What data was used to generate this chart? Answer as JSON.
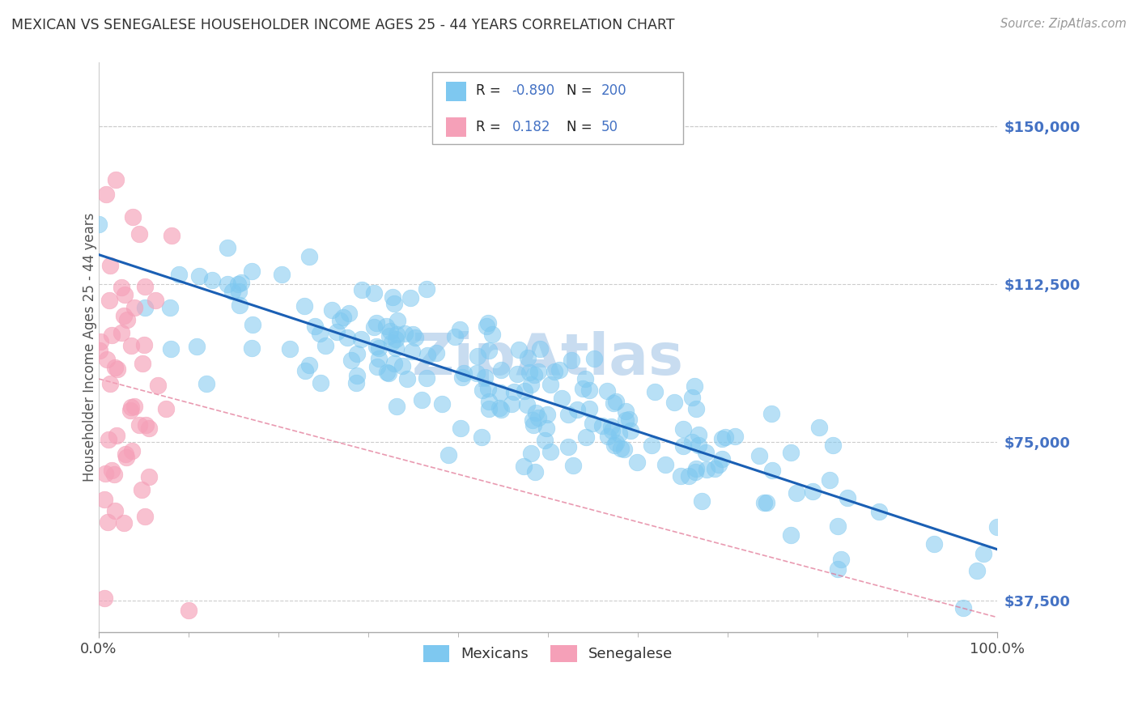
{
  "title": "MEXICAN VS SENEGALESE HOUSEHOLDER INCOME AGES 25 - 44 YEARS CORRELATION CHART",
  "source": "Source: ZipAtlas.com",
  "ylabel": "Householder Income Ages 25 - 44 years",
  "xlim": [
    0.0,
    1.0
  ],
  "ylim": [
    30000,
    165000
  ],
  "yticks": [
    37500,
    75000,
    112500,
    150000
  ],
  "ytick_labels": [
    "$37,500",
    "$75,000",
    "$112,500",
    "$150,000"
  ],
  "xticks": [
    0.0,
    1.0
  ],
  "xtick_labels": [
    "0.0%",
    "100.0%"
  ],
  "mexican_R": -0.89,
  "mexican_N": 200,
  "senegalese_R": 0.182,
  "senegalese_N": 50,
  "mexican_color": "#7EC8F0",
  "senegalese_color": "#F5A0B8",
  "trend_mexican_color": "#1A5FB4",
  "trend_senegalese_color": "#E07090",
  "background_color": "#FFFFFF",
  "grid_color": "#CCCCCC",
  "title_color": "#333333",
  "source_color": "#999999",
  "yticklabel_color": "#4472C4",
  "watermark_text": "ZipAtlas",
  "watermark_color": "#C8DCF0",
  "seed": 42
}
